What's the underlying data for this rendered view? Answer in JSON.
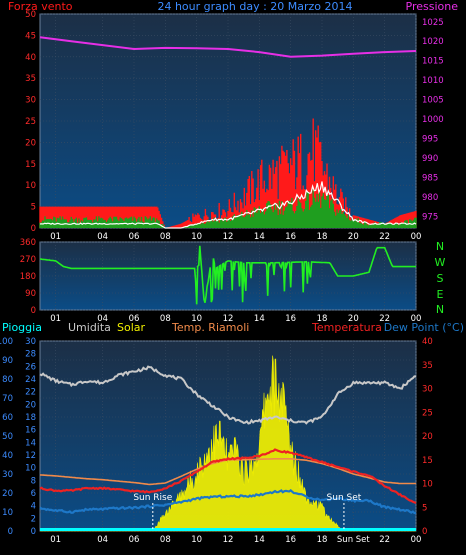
{
  "colors": {
    "plot_top": "#1c2f46",
    "plot_bottom": "#0b4c86",
    "wind_gust": "#ff1a1a",
    "wind_avg": "#1f9e1f",
    "wind_speed": "#ffffff",
    "pressure": "#e62fe6",
    "direction": "#22ee22",
    "humidity": "#c8c8c8",
    "temperature": "#ee2222",
    "indoor_temp": "#f08a4a",
    "dew_point": "#1e78c8",
    "solar": "#f2f000",
    "rain": "#00ffff",
    "left_axis": "#3d8cff",
    "right_axis_red": "#ff2a2a",
    "right_axis_pink": "#e62fe6",
    "grid": "#3b4d63"
  },
  "wind_panel": {
    "title_left": "Forza vento",
    "title_center": "24 hour graph day : 20 Marzo 2014",
    "title_right": "Pressione"
  },
  "direction_panel": {
    "compass": [
      "N",
      "W",
      "S",
      "E",
      "N"
    ]
  },
  "env_panel": {
    "legend_rain": "Pioggia",
    "legend_humidity": "Umidita",
    "legend_solar": "Solar",
    "legend_indoor": "Temp. Riamoli",
    "legend_temp": "Temperatura",
    "legend_dew": "Dew Point (°C)",
    "sunrise_label": "Sun Rise",
    "sunset_label": "Sun Set"
  },
  "chart_data": [
    {
      "type": "line",
      "title": "24 hour graph day : 20 Marzo 2014",
      "x_ticks": [
        "01",
        "04",
        "06",
        "08",
        "10",
        "12",
        "14",
        "16",
        "18",
        "20",
        "22",
        "00"
      ],
      "xlim_hours": [
        0,
        24
      ],
      "y_left_ticks": [
        0,
        5,
        10,
        15,
        20,
        25,
        30,
        35,
        40,
        45,
        50
      ],
      "ylim_left": [
        0,
        50
      ],
      "y_right_ticks": [
        975,
        980,
        985,
        990,
        995,
        1000,
        1005,
        1010,
        1015,
        1020,
        1025
      ],
      "ylim_right": [
        972,
        1027
      ],
      "grid": true,
      "series": [
        {
          "name": "Pressione",
          "axis": "right",
          "x": [
            0,
            2,
            4,
            6,
            8,
            10,
            12,
            14,
            16,
            18,
            20,
            22,
            24
          ],
          "values": [
            1021,
            1020,
            1019,
            1018,
            1018.3,
            1018.2,
            1018,
            1017.2,
            1016,
            1016.3,
            1016.8,
            1017.2,
            1017.5
          ]
        },
        {
          "name": "Forza vento",
          "axis": "left",
          "x": [
            0,
            2,
            4,
            6,
            7.5,
            8,
            9,
            10,
            11,
            12,
            13,
            14,
            15,
            16,
            17,
            17.5,
            18,
            19,
            20,
            21,
            22,
            23,
            24
          ],
          "values": [
            5,
            5,
            5,
            5,
            5,
            0,
            1,
            3,
            4,
            5,
            8,
            12,
            14,
            16,
            18,
            20,
            16,
            8,
            3,
            2,
            1,
            3,
            4
          ]
        },
        {
          "name": "wind_avg",
          "axis": "left",
          "x": [
            0,
            2,
            4,
            6,
            7.5,
            8,
            9,
            10,
            11,
            12,
            13,
            14,
            15,
            16,
            17,
            18,
            19,
            20,
            21,
            22,
            23,
            24
          ],
          "values": [
            2,
            2,
            2,
            2,
            2,
            0,
            0,
            1,
            2,
            2,
            3,
            4,
            5,
            5,
            6,
            7,
            4,
            2,
            1,
            1,
            1,
            2
          ]
        },
        {
          "name": "wind_speed",
          "axis": "left",
          "x": [
            0,
            2,
            4,
            6,
            7.5,
            8,
            9,
            10,
            11,
            12,
            13,
            14,
            15,
            16,
            17,
            18,
            19,
            20,
            21,
            22,
            23,
            24
          ],
          "values": [
            1,
            1,
            1,
            1,
            1,
            0,
            0,
            1,
            2,
            2,
            3,
            4,
            5,
            6,
            8,
            10,
            6,
            2,
            1,
            1,
            1,
            1
          ]
        }
      ]
    },
    {
      "type": "line",
      "x_ticks": [
        "01",
        "04",
        "06",
        "08",
        "10",
        "12",
        "14",
        "16",
        "18",
        "20",
        "22",
        "00"
      ],
      "xlim_hours": [
        0,
        24
      ],
      "y_left_ticks": [
        0,
        90,
        180,
        270,
        360
      ],
      "ylim_left": [
        0,
        360
      ],
      "grid": true,
      "series": [
        {
          "name": "direction",
          "axis": "left",
          "x": [
            0,
            1,
            1.5,
            2,
            9.9,
            10,
            10.2,
            10.5,
            11,
            11.2,
            12,
            13,
            15,
            17,
            18.5,
            19,
            20,
            21,
            21.5,
            22,
            22.5,
            23,
            24
          ],
          "values": [
            270,
            260,
            230,
            220,
            220,
            30,
            340,
            20,
            300,
            220,
            260,
            250,
            250,
            255,
            250,
            180,
            180,
            200,
            330,
            330,
            230,
            230,
            230
          ]
        }
      ]
    },
    {
      "type": "line",
      "x_ticks": [
        "01",
        "04",
        "06",
        "08",
        "10",
        "12",
        "14",
        "16",
        "18",
        "Sun Set",
        "22",
        "00"
      ],
      "xlim_hours": [
        0,
        24
      ],
      "y_left_ticks": [
        0,
        10,
        20,
        30,
        40,
        50,
        60,
        70,
        80,
        90,
        100
      ],
      "ylim_left": [
        0,
        100
      ],
      "y_left_inner_ticks": [
        0,
        2,
        4,
        6,
        8,
        10,
        12,
        14,
        16,
        18,
        20,
        22,
        24,
        26,
        28,
        30
      ],
      "ylim_left_inner": [
        0,
        30
      ],
      "y_right_ticks": [
        0,
        5,
        10,
        15,
        20,
        25,
        30,
        35,
        40
      ],
      "ylim_right": [
        0,
        40
      ],
      "grid": true,
      "sunrise_hour": 7.2,
      "sunset_hour": 19.4,
      "series": [
        {
          "name": "Umidita",
          "axis": "left",
          "x": [
            0,
            1,
            2,
            3,
            4,
            5,
            6,
            7,
            8,
            9,
            10,
            11,
            12,
            13,
            14,
            15,
            16,
            17,
            18,
            19,
            20,
            21,
            22,
            23,
            24
          ],
          "values": [
            83,
            79,
            77,
            79,
            78,
            82,
            84,
            86,
            82,
            80,
            72,
            66,
            60,
            57,
            58,
            60,
            58,
            57,
            60,
            72,
            78,
            78,
            78,
            75,
            82
          ]
        },
        {
          "name": "Temperatura",
          "axis": "right",
          "x": [
            0,
            1,
            2,
            3,
            4,
            5,
            6,
            7,
            8,
            9,
            10,
            11,
            12,
            13,
            14,
            15,
            16,
            17,
            18,
            19,
            20,
            21,
            22,
            23,
            24
          ],
          "values": [
            9,
            8.5,
            8.5,
            9,
            9,
            8.7,
            8.4,
            8.2,
            9,
            10.5,
            12.5,
            14.5,
            15.2,
            15.3,
            15.8,
            17,
            16.5,
            15.5,
            14.5,
            13.5,
            12.5,
            11.7,
            9.5,
            7.6,
            5.8
          ]
        },
        {
          "name": "Temp. Riamoli",
          "axis": "right",
          "x": [
            0,
            1,
            2,
            3,
            4,
            5,
            6,
            7,
            8,
            9,
            10,
            11,
            12,
            13,
            14,
            15,
            16,
            17,
            18,
            19,
            20,
            21,
            22,
            23,
            24
          ],
          "values": [
            11.8,
            11.6,
            11.3,
            11,
            10.8,
            10.5,
            10.2,
            9.8,
            10.1,
            11.5,
            13,
            14.2,
            15,
            15,
            15.1,
            15.2,
            15.2,
            14.9,
            14.2,
            13.2,
            12,
            11.2,
            10.3,
            10,
            10
          ]
        },
        {
          "name": "Dew Point (°C)",
          "axis": "right",
          "x": [
            0,
            1,
            2,
            3,
            4,
            5,
            6,
            7,
            8,
            9,
            10,
            11,
            12,
            13,
            14,
            15,
            16,
            17,
            18,
            19,
            20,
            21,
            22,
            23,
            24
          ],
          "values": [
            4.8,
            4.3,
            4,
            4.5,
            4.6,
            4.8,
            4.9,
            5.2,
            5.5,
            6.1,
            6.8,
            7.2,
            7.3,
            7.3,
            7.6,
            8.3,
            8.4,
            7.2,
            6.5,
            6.9,
            6.4,
            6.4,
            5,
            4.5,
            3.8
          ]
        },
        {
          "name": "Solar",
          "axis": "left_inner",
          "x": [
            0,
            7.2,
            8,
            9,
            10,
            10.5,
            11,
            11.5,
            12,
            12.5,
            13,
            13.5,
            14,
            14.5,
            15,
            15.5,
            16,
            16.5,
            17,
            17.5,
            18,
            18.5,
            19.4,
            24
          ],
          "values": [
            0,
            0,
            3,
            6,
            10,
            12,
            15,
            16,
            12,
            14,
            10,
            11,
            14,
            24,
            25,
            22,
            14,
            10,
            6,
            5,
            4,
            2,
            0,
            0
          ]
        },
        {
          "name": "Pioggia",
          "axis": "left",
          "x": [
            0,
            24
          ],
          "values": [
            0,
            0
          ]
        }
      ]
    }
  ]
}
